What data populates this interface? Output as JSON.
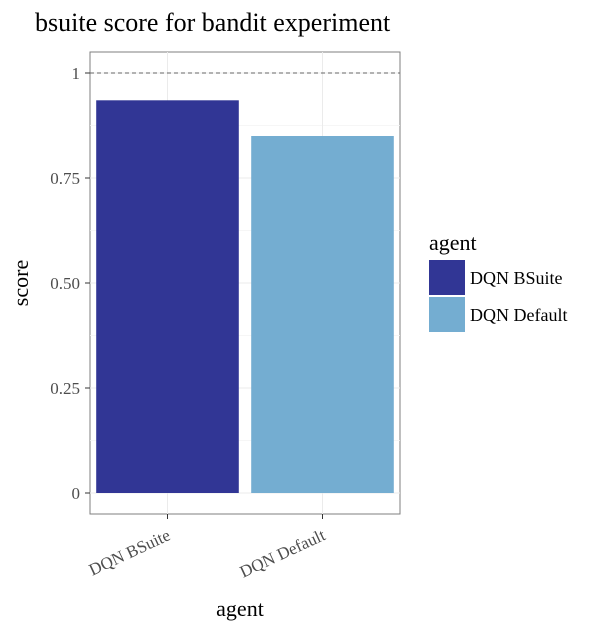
{
  "chart_data": {
    "type": "bar",
    "title": "bsuite score for bandit experiment",
    "xlabel": "agent",
    "ylabel": "score",
    "categories": [
      "DQN BSuite",
      "DQN Default"
    ],
    "values": [
      0.935,
      0.85
    ],
    "colors": [
      "#313695",
      "#74add1"
    ],
    "ylim": [
      -0.05,
      1.05
    ],
    "yticks": [
      0,
      0.25,
      0.5,
      0.75,
      1
    ],
    "ytick_labels": [
      "0",
      "0.25",
      "0.50",
      "0.75",
      "1"
    ],
    "reference_line": {
      "y": 1,
      "style": "dashed"
    },
    "grid": true,
    "legend": {
      "title": "agent",
      "placement": "right",
      "entries": [
        "DQN BSuite",
        "DQN Default"
      ]
    }
  }
}
